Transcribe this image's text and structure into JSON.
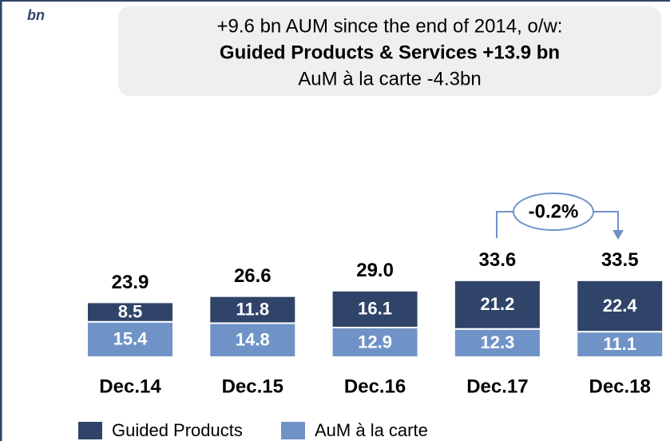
{
  "chart_data": {
    "type": "stacked_bar",
    "unit": "bn",
    "headline": {
      "line1": "+9.6 bn AUM since the end of 2014, o/w:",
      "line2": "Guided Products & Services +13.9 bn",
      "line3": "AuM à la carte -4.3bn"
    },
    "categories": [
      "Dec.14",
      "Dec.15",
      "Dec.16",
      "Dec.17",
      "Dec.18"
    ],
    "series": [
      {
        "name": "AuM à la carte",
        "color": "#7093c7",
        "values": [
          15.4,
          14.8,
          12.9,
          12.3,
          11.1
        ]
      },
      {
        "name": "Guided Products",
        "color": "#2f4468",
        "values": [
          8.5,
          11.8,
          16.1,
          21.2,
          22.4
        ]
      }
    ],
    "totals": {
      "values": [
        23.9,
        26.6,
        29.0,
        33.6,
        33.5
      ],
      "value_labels": [
        "23.9",
        "26.6",
        "29.0",
        "33.6",
        "33.5"
      ]
    },
    "change_annotation": "-0.2%",
    "legend_order": [
      1,
      0
    ]
  }
}
